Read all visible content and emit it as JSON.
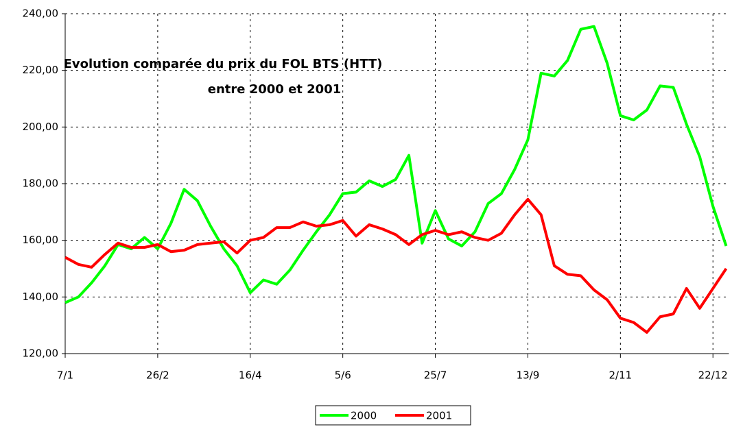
{
  "chart_data": {
    "type": "line",
    "title": "Evolution comparée du prix du FOL BTS (HTT)",
    "subtitle": "entre 2000 et 2001",
    "categories": [
      "7/1",
      null,
      null,
      null,
      null,
      null,
      null,
      "26/2",
      null,
      null,
      null,
      null,
      null,
      null,
      "16/4",
      null,
      null,
      null,
      null,
      null,
      null,
      "5/6",
      null,
      null,
      null,
      null,
      null,
      null,
      "25/7",
      null,
      null,
      null,
      null,
      null,
      null,
      "13/9",
      null,
      null,
      null,
      null,
      null,
      null,
      "2/11",
      null,
      null,
      null,
      null,
      null,
      null,
      "22/12",
      null
    ],
    "series": [
      {
        "name": "2000",
        "color": "#00ff00",
        "values": [
          138,
          140,
          145,
          151,
          158.5,
          157,
          161,
          157,
          166,
          178,
          174,
          165,
          157,
          151,
          141.5,
          146,
          144.5,
          149.5,
          156.5,
          163,
          169,
          176.5,
          177,
          181,
          179,
          181.5,
          190,
          159,
          170.5,
          160.5,
          158,
          163,
          173,
          176.5,
          185,
          195.5,
          219,
          218,
          223.5,
          234.5,
          235.5,
          222.5,
          204,
          202.5,
          206,
          214.5,
          214,
          201,
          189.5,
          172,
          158
        ]
      },
      {
        "name": "2001",
        "color": "#ff0000",
        "values": [
          154,
          151.5,
          150.5,
          155,
          159,
          157.5,
          157.5,
          158.5,
          156,
          156.5,
          158.5,
          159,
          159.5,
          155.5,
          160,
          161,
          164.5,
          164.5,
          166.5,
          165,
          165.5,
          167,
          161.5,
          165.5,
          164,
          162,
          158.5,
          162,
          163.5,
          162,
          163,
          161,
          160,
          162.5,
          169,
          174.5,
          169,
          151,
          148,
          147.5,
          142.5,
          139,
          132.5,
          131,
          127.5,
          133,
          134,
          143,
          136,
          143,
          150
        ]
      }
    ],
    "ylim": [
      120,
      240
    ],
    "yticks": [
      {
        "value": 120,
        "label": "120,00"
      },
      {
        "value": 140,
        "label": "140,00"
      },
      {
        "value": 160,
        "label": "160,00"
      },
      {
        "value": 180,
        "label": "180,00"
      },
      {
        "value": 200,
        "label": "200,00"
      },
      {
        "value": 220,
        "label": "220,00"
      },
      {
        "value": 240,
        "label": "240,00"
      }
    ],
    "grid": true,
    "legend": "bottom"
  }
}
